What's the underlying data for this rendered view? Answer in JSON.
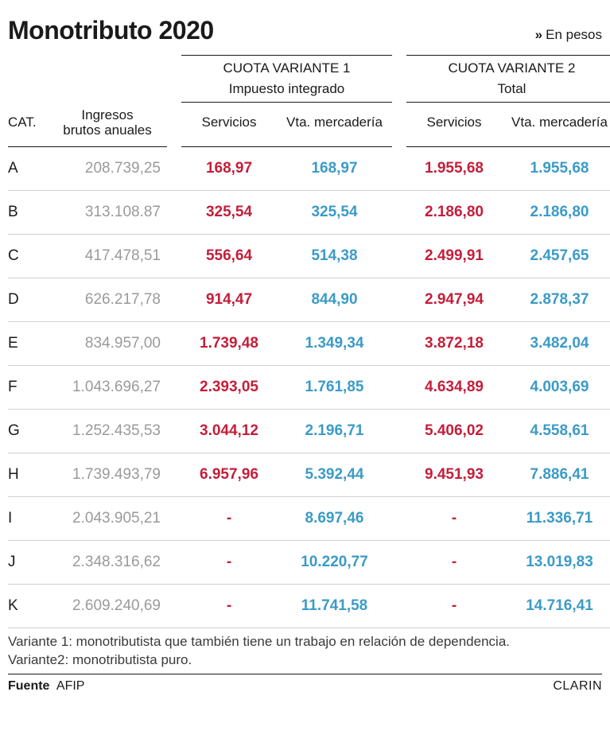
{
  "title": "Monotributo 2020",
  "unit_chevron": "»",
  "unit_label": "En pesos",
  "headers": {
    "cat": "CAT.",
    "ingresos_l1": "Ingresos",
    "ingresos_l2": "brutos anuales",
    "group1": "CUOTA VARIANTE 1",
    "group2": "CUOTA VARIANTE 2",
    "sub1": "Impuesto integrado",
    "sub2": "Total",
    "servicios": "Servicios",
    "vta": "Vta. mercadería"
  },
  "rows": [
    {
      "cat": "A",
      "ing": "208.739,25",
      "s1": "168,97",
      "v1": "168,97",
      "s2": "1.955,68",
      "v2": "1.955,68"
    },
    {
      "cat": "B",
      "ing": "313.108.87",
      "s1": "325,54",
      "v1": "325,54",
      "s2": "2.186,80",
      "v2": "2.186,80"
    },
    {
      "cat": "C",
      "ing": "417.478,51",
      "s1": "556,64",
      "v1": "514,38",
      "s2": "2.499,91",
      "v2": "2.457,65"
    },
    {
      "cat": "D",
      "ing": "626.217,78",
      "s1": "914,47",
      "v1": "844,90",
      "s2": "2.947,94",
      "v2": "2.878,37"
    },
    {
      "cat": "E",
      "ing": "834.957,00",
      "s1": "1.739,48",
      "v1": "1.349,34",
      "s2": "3.872,18",
      "v2": "3.482,04"
    },
    {
      "cat": "F",
      "ing": "1.043.696,27",
      "s1": "2.393,05",
      "v1": "1.761,85",
      "s2": "4.634,89",
      "v2": "4.003,69"
    },
    {
      "cat": "G",
      "ing": "1.252.435,53",
      "s1": "3.044,12",
      "v1": "2.196,71",
      "s2": "5.406,02",
      "v2": "4.558,61"
    },
    {
      "cat": "H",
      "ing": "1.739.493,79",
      "s1": "6.957,96",
      "v1": "5.392,44",
      "s2": "9.451,93",
      "v2": "7.886,41"
    },
    {
      "cat": "I",
      "ing": "2.043.905,21",
      "s1": "-",
      "v1": "8.697,46",
      "s2": "-",
      "v2": "11.336,71"
    },
    {
      "cat": "J",
      "ing": "2.348.316,62",
      "s1": "-",
      "v1": "10.220,77",
      "s2": "-",
      "v2": "13.019,83"
    },
    {
      "cat": "K",
      "ing": "2.609.240,69",
      "s1": "-",
      "v1": "11.741,58",
      "s2": "-",
      "v2": "14.716,41"
    }
  ],
  "footnote1": "Variante 1: monotributista que también tiene un trabajo en relación de dependencia.",
  "footnote2": "Variante2: monotributista puro.",
  "source_label": "Fuente",
  "source_value": "AFIP",
  "brand": "CLARIN",
  "colors": {
    "text": "#1a1a1a",
    "muted": "#9a9a9a",
    "servicios": "#c41e3a",
    "venta": "#3b9bc6",
    "row_border": "#d0d0d0",
    "strong_border": "#1a1a1a",
    "background": "#ffffff"
  },
  "typography": {
    "title_fontsize": 32,
    "header_fontsize": 17,
    "cell_fontsize": 19,
    "footnote_fontsize": 17
  }
}
